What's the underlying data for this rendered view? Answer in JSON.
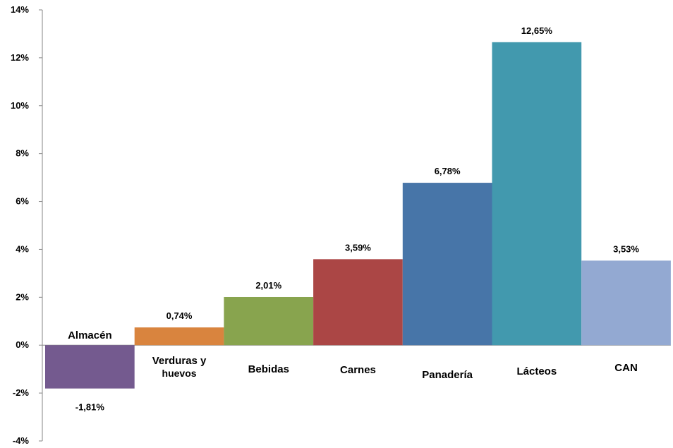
{
  "chart_data": {
    "type": "bar",
    "categories": [
      "Almacén",
      "Verduras y huevos",
      "Bebidas",
      "Carnes",
      "Panadería",
      "Lácteos",
      "CAN"
    ],
    "category_lines": [
      [
        "Almacén"
      ],
      [
        "Verduras y",
        "huevos"
      ],
      [
        "Bebidas"
      ],
      [
        "Carnes"
      ],
      [
        "Panadería"
      ],
      [
        "Lácteos"
      ],
      [
        "CAN"
      ]
    ],
    "values": [
      -1.81,
      0.74,
      2.01,
      3.59,
      6.78,
      12.65,
      3.53
    ],
    "data_labels": [
      "-1,81%",
      "0,74%",
      "2,01%",
      "3,59%",
      "6,78%",
      "12,65%",
      "3,53%"
    ],
    "colors": [
      "#745a8f",
      "#d9843e",
      "#88a44e",
      "#ab4645",
      "#4775a8",
      "#4299ae",
      "#93a9d2"
    ],
    "ylim": [
      -4,
      14
    ],
    "yticks": [
      -4,
      -2,
      0,
      2,
      4,
      6,
      8,
      10,
      12,
      14
    ],
    "ytick_labels": [
      "-4%",
      "-2%",
      "0%",
      "2%",
      "4%",
      "6%",
      "8%",
      "10%",
      "12%",
      "14%"
    ],
    "grid": false,
    "legend": "none",
    "title": "",
    "xlabel": "",
    "ylabel": ""
  }
}
